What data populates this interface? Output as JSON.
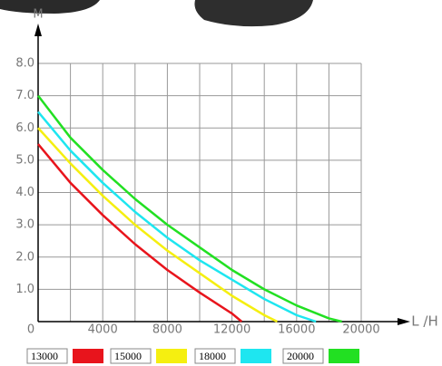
{
  "chart_data": {
    "type": "line",
    "y_label": "M",
    "x_label": "L /H",
    "xlim": [
      0,
      20000
    ],
    "ylim": [
      0,
      8
    ],
    "xticks": [
      0,
      4000,
      8000,
      12000,
      16000,
      20000
    ],
    "xgrid": [
      0,
      2000,
      4000,
      6000,
      8000,
      10000,
      12000,
      14000,
      16000,
      18000,
      20000
    ],
    "yticks": [
      {
        "value": 1,
        "label": "1.0"
      },
      {
        "value": 2,
        "label": "2.0"
      },
      {
        "value": 3,
        "label": "3.0"
      },
      {
        "value": 4,
        "label": "4.0"
      },
      {
        "value": 5,
        "label": "5.0"
      },
      {
        "value": 6,
        "label": "6.0"
      },
      {
        "value": 7,
        "label": "7.0"
      },
      {
        "value": 8,
        "label": "8.0"
      }
    ],
    "grid": true,
    "series": [
      {
        "name": "13000",
        "color": "#e8141c",
        "x": [
          0,
          2000,
          4000,
          6000,
          8000,
          10000,
          12000,
          12600
        ],
        "values": [
          5.5,
          4.3,
          3.3,
          2.4,
          1.6,
          0.9,
          0.25,
          0
        ]
      },
      {
        "name": "15000",
        "color": "#f5ef10",
        "x": [
          0,
          2000,
          4000,
          6000,
          8000,
          10000,
          12000,
          14000,
          14800
        ],
        "values": [
          6.0,
          4.9,
          3.9,
          3.0,
          2.2,
          1.5,
          0.8,
          0.2,
          0
        ]
      },
      {
        "name": "18000",
        "color": "#1ee6f0",
        "x": [
          0,
          2000,
          4000,
          6000,
          8000,
          10000,
          12000,
          14000,
          16000,
          17200
        ],
        "values": [
          6.5,
          5.3,
          4.3,
          3.4,
          2.6,
          1.9,
          1.3,
          0.7,
          0.2,
          0
        ]
      },
      {
        "name": "20000",
        "color": "#22e022",
        "x": [
          0,
          2000,
          4000,
          6000,
          8000,
          10000,
          12000,
          14000,
          16000,
          18000,
          18800
        ],
        "values": [
          7.0,
          5.7,
          4.7,
          3.8,
          3.0,
          2.3,
          1.6,
          1.0,
          0.5,
          0.1,
          0
        ]
      }
    ]
  }
}
